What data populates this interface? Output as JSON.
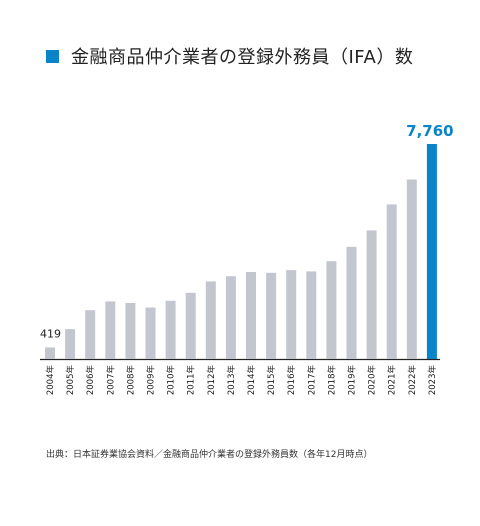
{
  "title": "金融商品仲介業者の登録外務員（IFA）数",
  "source": "出典：日本証券業協会資料／金融商品仲介業者の登録外務員数（各年12月時点）",
  "colors": {
    "accent": "#0a84c8",
    "bar": "#c3c6cf",
    "axis": "#222222"
  },
  "chart_data": {
    "type": "bar",
    "title": "金融商品仲介業者の登録外務員（IFA）数",
    "categories": [
      "2004年",
      "2005年",
      "2006年",
      "2007年",
      "2008年",
      "2009年",
      "2010年",
      "2011年",
      "2012年",
      "2013年",
      "2014年",
      "2015年",
      "2016年",
      "2017年",
      "2018年",
      "2019年",
      "2020年",
      "2021年",
      "2022年",
      "2023年"
    ],
    "values": [
      419,
      1080,
      1760,
      2080,
      2020,
      1860,
      2100,
      2390,
      2800,
      2990,
      3140,
      3110,
      3210,
      3160,
      3530,
      4050,
      4640,
      5580,
      6480,
      7760
    ],
    "data_labels": {
      "0": "419",
      "19": "7,760"
    },
    "highlight_index": 19,
    "ylim": [
      0,
      7760
    ],
    "grid": false,
    "legend": false
  }
}
